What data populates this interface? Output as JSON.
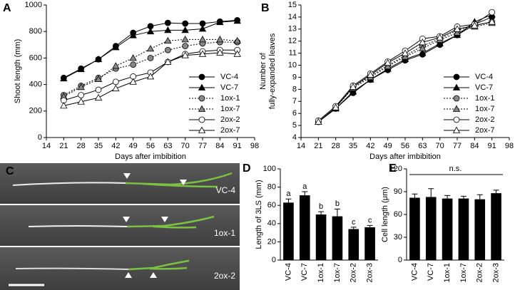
{
  "chart_data": [
    {
      "panel": "A",
      "type": "line",
      "xlabel": "Days after imbibition",
      "ylabel": [
        "Shoot length (mm)"
      ],
      "x": [
        21,
        28,
        35,
        42,
        49,
        56,
        63,
        70,
        77,
        84,
        91
      ],
      "xlim": [
        14,
        98
      ],
      "xticks": [
        14,
        21,
        28,
        35,
        42,
        49,
        56,
        63,
        70,
        77,
        84,
        91,
        98
      ],
      "ylim": [
        0,
        1000
      ],
      "yticks": [
        0,
        200,
        400,
        600,
        800,
        1000
      ],
      "legend": "lower right",
      "series": [
        {
          "name": "VC-4",
          "marker": "circle",
          "color": "#000000",
          "line_style": "solid",
          "values": [
            450,
            520,
            590,
            690,
            790,
            840,
            865,
            860,
            860,
            875,
            885
          ]
        },
        {
          "name": "VC-7",
          "marker": "triangle",
          "color": "#000000",
          "line_style": "solid",
          "values": [
            445,
            515,
            590,
            680,
            770,
            800,
            810,
            810,
            820,
            870,
            880
          ]
        },
        {
          "name": "1ox-1",
          "marker": "circle",
          "color": "#888888",
          "line_style": "dotted",
          "values": [
            320,
            390,
            450,
            520,
            550,
            600,
            660,
            690,
            710,
            720,
            720
          ]
        },
        {
          "name": "1ox-7",
          "marker": "triangle",
          "color": "#888888",
          "line_style": "dotted",
          "values": [
            310,
            380,
            440,
            540,
            600,
            670,
            730,
            740,
            740,
            740,
            730
          ]
        },
        {
          "name": "2ox-2",
          "marker": "circle",
          "color": "#ffffff",
          "line_style": "solid",
          "values": [
            280,
            320,
            360,
            420,
            460,
            490,
            570,
            630,
            650,
            660,
            660
          ]
        },
        {
          "name": "2ox-7",
          "marker": "triangle",
          "color": "#ffffff",
          "line_style": "solid",
          "values": [
            240,
            270,
            300,
            370,
            420,
            460,
            570,
            620,
            630,
            640,
            630
          ]
        }
      ]
    },
    {
      "panel": "B",
      "type": "line",
      "xlabel": "Days after imbibition",
      "ylabel": [
        "Number of",
        "fully-expanded leaves"
      ],
      "x": [
        21,
        28,
        35,
        42,
        49,
        56,
        63,
        70,
        77,
        84,
        91
      ],
      "xlim": [
        14,
        98
      ],
      "xticks": [
        14,
        21,
        28,
        35,
        42,
        49,
        56,
        63,
        70,
        77,
        84,
        91,
        98
      ],
      "ylim": [
        4,
        15
      ],
      "yticks": [
        4,
        5,
        6,
        7,
        8,
        9,
        10,
        11,
        12,
        13,
        14,
        15
      ],
      "legend": "lower right",
      "series": [
        {
          "name": "VC-4",
          "marker": "circle",
          "color": "#000000",
          "line_style": "solid",
          "values": [
            5.3,
            6.4,
            7.7,
            8.8,
            9.6,
            10.4,
            10.9,
            11.7,
            12.5,
            13.4,
            14.0
          ]
        },
        {
          "name": "VC-7",
          "marker": "triangle",
          "color": "#000000",
          "line_style": "solid",
          "values": [
            5.3,
            6.4,
            7.8,
            8.8,
            9.7,
            10.5,
            11.0,
            11.8,
            12.5,
            13.6,
            14.2
          ]
        },
        {
          "name": "1ox-1",
          "marker": "circle",
          "color": "#888888",
          "line_style": "dotted",
          "values": [
            5.3,
            6.5,
            8.2,
            9.1,
            10.0,
            10.8,
            11.6,
            12.2,
            12.9,
            13.3,
            13.6
          ]
        },
        {
          "name": "1ox-7",
          "marker": "triangle",
          "color": "#888888",
          "line_style": "dotted",
          "values": [
            5.3,
            6.5,
            8.1,
            9.0,
            9.9,
            10.7,
            11.4,
            12.1,
            12.7,
            13.2,
            13.5
          ]
        },
        {
          "name": "2ox-2",
          "marker": "circle",
          "color": "#ffffff",
          "line_style": "solid",
          "values": [
            5.4,
            6.6,
            8.3,
            9.3,
            10.3,
            11.2,
            12.2,
            12.4,
            13.2,
            13.4,
            14.4
          ]
        },
        {
          "name": "2ox-7",
          "marker": "triangle",
          "color": "#ffffff",
          "line_style": "solid",
          "values": [
            5.3,
            6.5,
            8.2,
            9.2,
            10.2,
            11.0,
            11.9,
            12.3,
            13.0,
            13.3,
            13.6
          ]
        }
      ]
    },
    {
      "panel": "C",
      "type": "image",
      "labels": [
        "VC-4",
        "1ox-1",
        "2ox-2"
      ]
    },
    {
      "panel": "D",
      "type": "bar",
      "ylabel": [
        "Length of 3LS (mm)"
      ],
      "categories": [
        "VC-4",
        "VC-7",
        "1ox-1",
        "1ox-7",
        "2ox-2",
        "2ox-3"
      ],
      "values": [
        63,
        71,
        50,
        48,
        34,
        36
      ],
      "errors": [
        4,
        4,
        3,
        8,
        2,
        2
      ],
      "annotations": [
        "a",
        "a",
        "b",
        "b",
        "c",
        "c"
      ],
      "color": "#000000",
      "ylim": [
        0,
        100
      ],
      "yticks": [
        0,
        20,
        40,
        60,
        80,
        100
      ]
    },
    {
      "panel": "E",
      "type": "bar",
      "ylabel": [
        "Cell length (μm)"
      ],
      "categories": [
        "VC-4",
        "VC-7",
        "1ox-1",
        "1ox-7",
        "2ox-2",
        "2ox-3"
      ],
      "values": [
        82,
        83,
        81,
        81,
        80,
        88
      ],
      "errors": [
        5,
        11,
        4,
        3,
        6,
        4
      ],
      "note": "n.s.",
      "color": "#000000",
      "ylim": [
        0,
        120
      ],
      "yticks": [
        0,
        30,
        60,
        90,
        120
      ]
    }
  ]
}
